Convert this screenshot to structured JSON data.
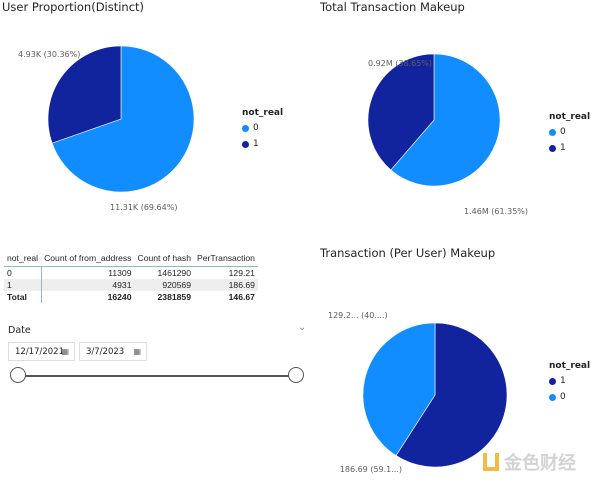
{
  "charts": [
    {
      "title": "User Proportion(Distinct)",
      "legend_title": "not_real",
      "legend": [
        {
          "label": "0",
          "color": "#118DFF"
        },
        {
          "label": "1",
          "color": "#12239E"
        }
      ],
      "slices": [
        {
          "category": "0",
          "percent": 69.64,
          "label": "11.31K (69.64%)",
          "color": "#118DFF"
        },
        {
          "category": "1",
          "percent": 30.36,
          "label": "4.93K (30.36%)",
          "color": "#12239E"
        }
      ]
    },
    {
      "title": "Total Transaction Makeup",
      "legend_title": "not_real",
      "legend": [
        {
          "label": "0",
          "color": "#118DFF"
        },
        {
          "label": "1",
          "color": "#12239E"
        }
      ],
      "slices": [
        {
          "category": "0",
          "percent": 61.35,
          "label": "1.46M (61.35%)",
          "color": "#118DFF"
        },
        {
          "category": "1",
          "percent": 38.65,
          "label": "0.92M (38.65%)",
          "color": "#12239E"
        }
      ]
    },
    {
      "title": "Transaction (Per User) Makeup",
      "legend_title": "not_real",
      "legend": [
        {
          "label": "1",
          "color": "#12239E"
        },
        {
          "label": "0",
          "color": "#118DFF"
        }
      ],
      "slices": [
        {
          "category": "1",
          "percent": 59.1,
          "label": "186.69 (59.1...)",
          "color": "#12239E"
        },
        {
          "category": "0",
          "percent": 40.9,
          "label": "129.2... (40....)",
          "color": "#118DFF"
        }
      ]
    }
  ],
  "table": {
    "headers": [
      "not_real",
      "Count of from_address",
      "Count of hash",
      "PerTransaction"
    ],
    "rows": [
      [
        "0",
        "11309",
        "1461290",
        "129.21"
      ],
      [
        "1",
        "4931",
        "920569",
        "186.69"
      ]
    ],
    "total": [
      "Total",
      "16240",
      "2381859",
      "146.67"
    ]
  },
  "slicer": {
    "title": "Date",
    "start": "12/17/2021",
    "end": "3/7/2023",
    "range_fraction": [
      0,
      1
    ]
  },
  "watermark": "金色财经"
}
